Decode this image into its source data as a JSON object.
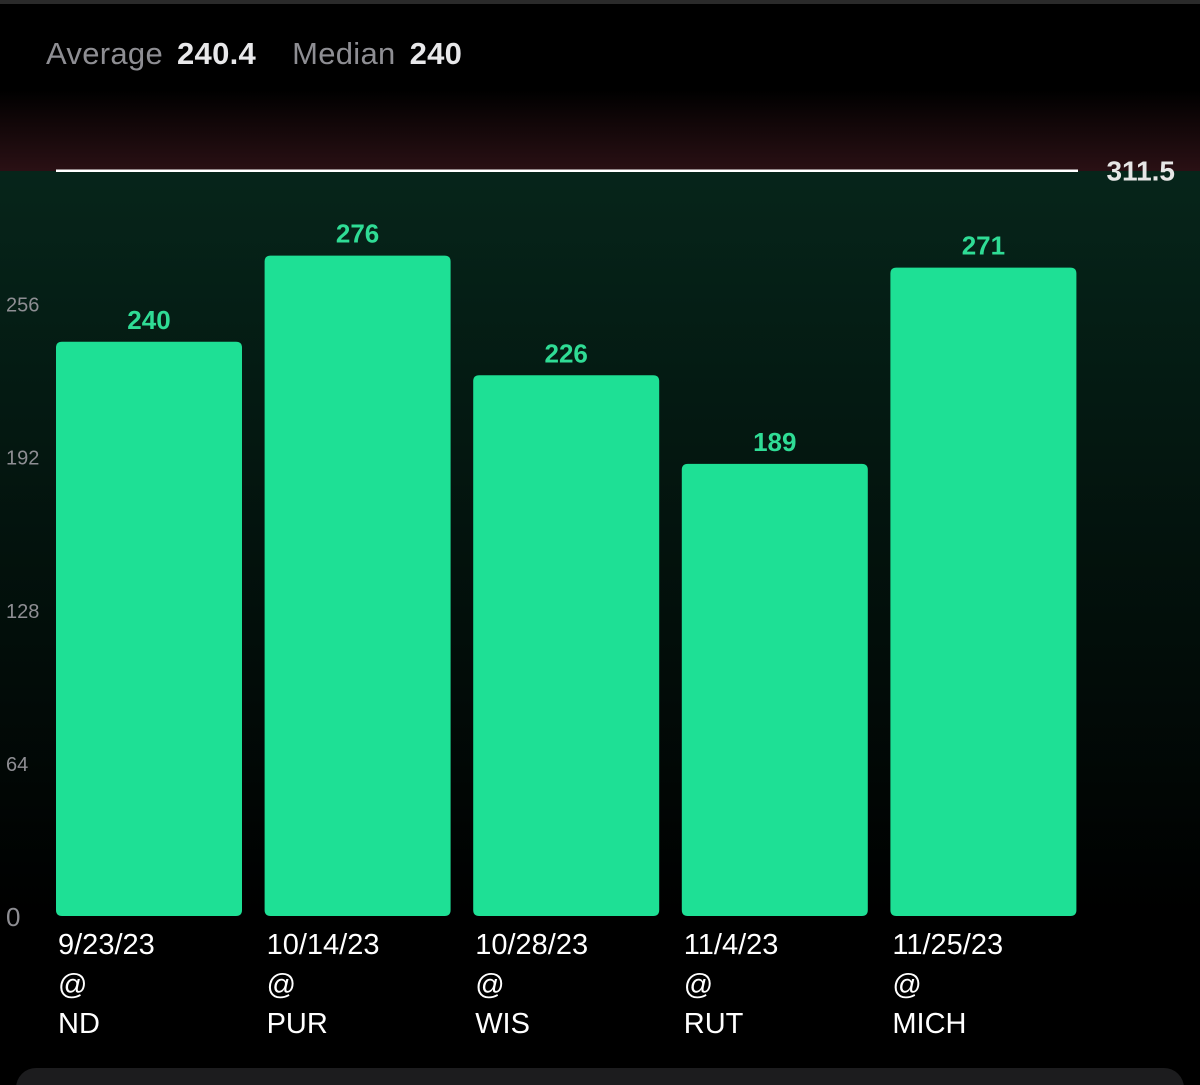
{
  "summary": {
    "average_label": "Average",
    "average_value": "240.4",
    "median_label": "Median",
    "median_value": "240"
  },
  "colors": {
    "bar": "#1ee095",
    "bar_label": "#2fdc95",
    "tick_label": "#8e8e93",
    "category_label": "#ffffff",
    "threshold_line": "#ffffff",
    "threshold_label": "#e6e6e6",
    "above_threshold_tint": "#2a1014",
    "below_threshold_tint": "#06251a"
  },
  "chart_data": {
    "type": "bar",
    "categories": [
      [
        "9/23/23",
        "@",
        "ND"
      ],
      [
        "10/14/23",
        "@",
        "PUR"
      ],
      [
        "10/28/23",
        "@",
        "WIS"
      ],
      [
        "11/4/23",
        "@",
        "RUT"
      ],
      [
        "11/25/23",
        "@",
        "MICH"
      ]
    ],
    "values": [
      240,
      276,
      226,
      189,
      271
    ],
    "value_labels": [
      "240",
      "276",
      "226",
      "189",
      "271"
    ],
    "y_ticks": [
      0,
      64,
      128,
      192,
      256
    ],
    "y_tick_labels": [
      "0",
      "64",
      "128",
      "192",
      "256"
    ],
    "ylim": [
      0,
      311.5
    ],
    "threshold": {
      "value": 311.5,
      "label": "311.5"
    },
    "grid": false,
    "title": "",
    "xlabel": "",
    "ylabel": ""
  }
}
